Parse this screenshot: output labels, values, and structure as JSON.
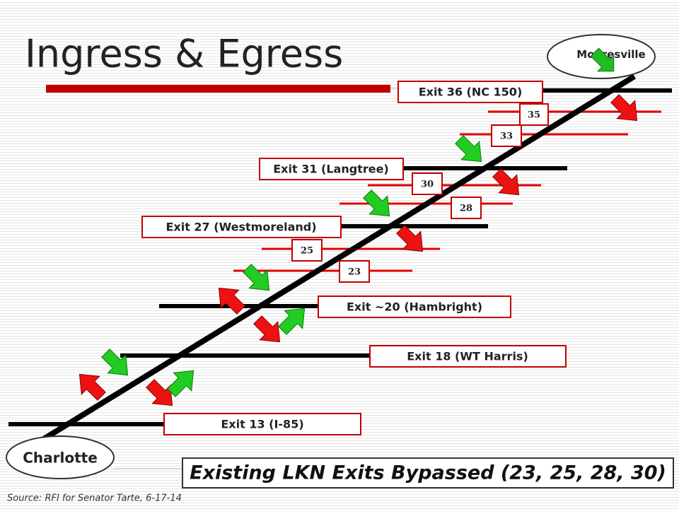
{
  "header": {
    "title": "Ingress & Egress"
  },
  "cities": {
    "north": "Mooresville",
    "south": "Charlotte"
  },
  "exits": [
    {
      "label": "Exit 36 (NC 150)"
    },
    {
      "label": "Exit 31 (Langtree)"
    },
    {
      "label": "Exit 27 (Westmoreland)"
    },
    {
      "label": "Exit  ~20 (Hambright)"
    },
    {
      "label": "Exit  18 (WT Harris)"
    },
    {
      "label": "Exit  13 (I-85)"
    }
  ],
  "bypassed": [
    "35",
    "33",
    "30",
    "28",
    "25",
    "23"
  ],
  "callout": "Existing LKN Exits Bypassed (23, 25, 28, 30)",
  "source": "Source: RFI for Senator Tarte, 6-17-14"
}
